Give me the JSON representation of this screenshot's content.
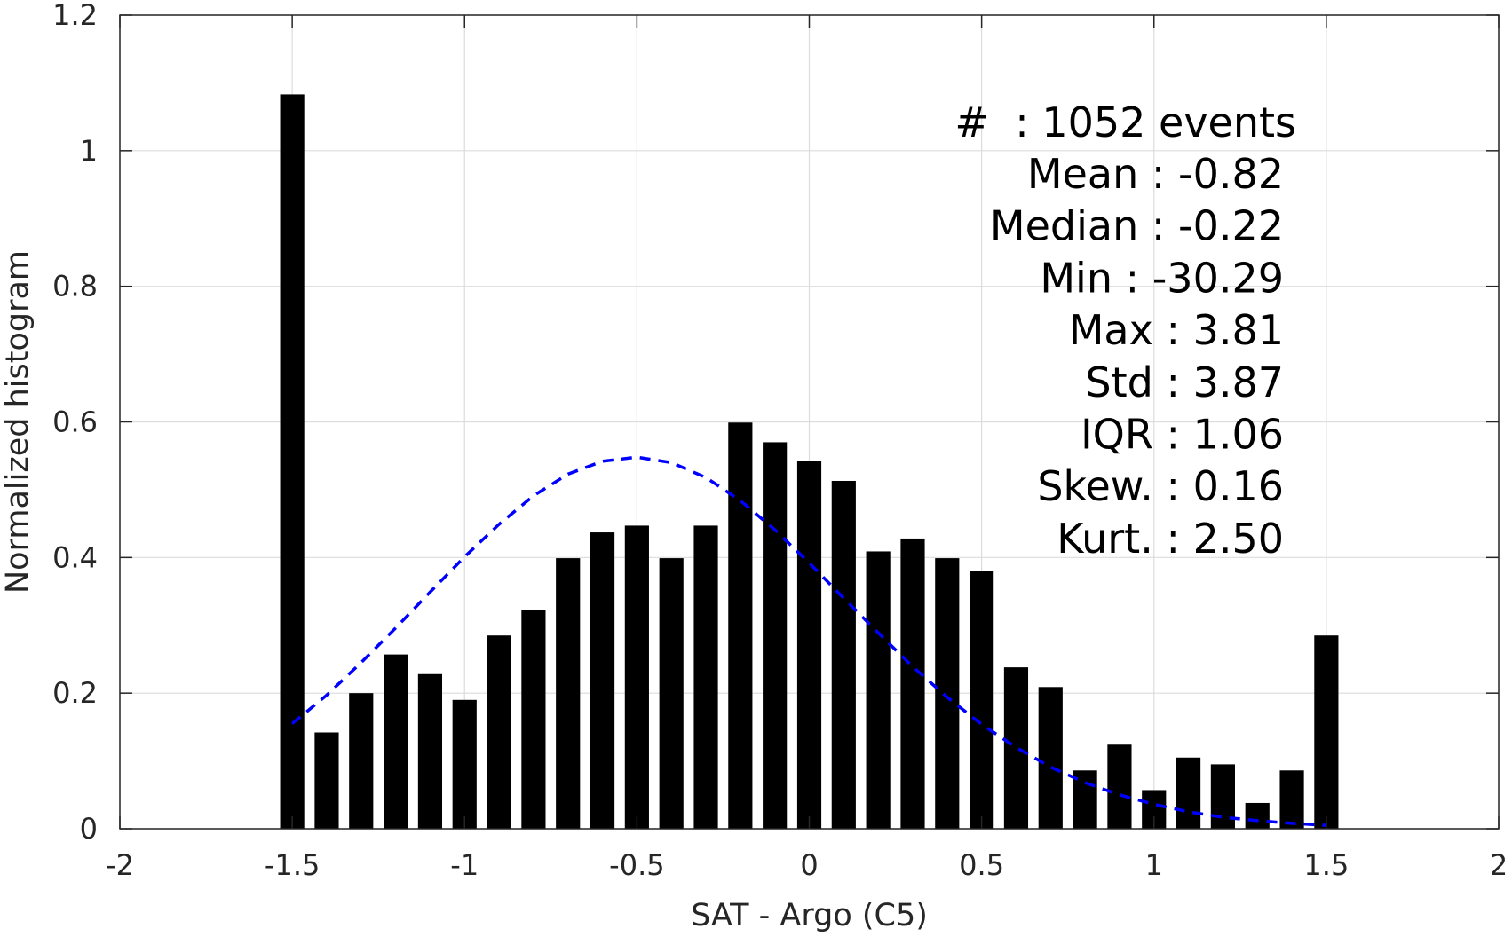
{
  "chart_data": {
    "type": "bar",
    "title": "",
    "xlabel": "SAT - Argo (C5)",
    "ylabel": "Normalized histogram",
    "xlim": [
      -2,
      2
    ],
    "ylim": [
      0,
      1.2
    ],
    "xticks": [
      -2,
      -1.5,
      -1,
      -0.5,
      0,
      0.5,
      1,
      1.5,
      2
    ],
    "xtick_labels": [
      "-2",
      "-1.5",
      "-1",
      "-0.5",
      "0",
      "0.5",
      "1",
      "1.5",
      "2"
    ],
    "yticks": [
      0,
      0.2,
      0.4,
      0.6,
      0.8,
      1,
      1.2
    ],
    "ytick_labels": [
      "0",
      "0.2",
      "0.4",
      "0.6",
      "0.8",
      "1",
      "1.2"
    ],
    "grid": true,
    "bar_width": 0.07,
    "x": [
      -1.5,
      -1.4,
      -1.3,
      -1.2,
      -1.1,
      -1.0,
      -0.9,
      -0.8,
      -0.7,
      -0.6,
      -0.5,
      -0.4,
      -0.3,
      -0.2,
      -0.1,
      0.0,
      0.1,
      0.2,
      0.3,
      0.4,
      0.5,
      0.6,
      0.7,
      0.8,
      0.9,
      1.0,
      1.1,
      1.2,
      1.3,
      1.4,
      1.5
    ],
    "values": [
      1.083,
      0.142,
      0.2,
      0.257,
      0.228,
      0.19,
      0.285,
      0.323,
      0.399,
      0.437,
      0.447,
      0.399,
      0.447,
      0.599,
      0.57,
      0.542,
      0.513,
      0.409,
      0.428,
      0.399,
      0.38,
      0.238,
      0.209,
      0.086,
      0.124,
      0.057,
      0.105,
      0.095,
      0.038,
      0.086,
      0.285
    ],
    "bar_color": "#000000",
    "fit_curve": {
      "style": "dashed",
      "color": "#0000ff",
      "x": [
        -1.5,
        -1.4,
        -1.3,
        -1.2,
        -1.1,
        -1.0,
        -0.9,
        -0.8,
        -0.7,
        -0.6,
        -0.5,
        -0.4,
        -0.3,
        -0.2,
        -0.1,
        0.0,
        0.1,
        0.2,
        0.3,
        0.4,
        0.5,
        0.6,
        0.7,
        0.8,
        0.9,
        1.0,
        1.1,
        1.2,
        1.3,
        1.4,
        1.5
      ],
      "y": [
        0.155,
        0.197,
        0.245,
        0.296,
        0.349,
        0.401,
        0.449,
        0.491,
        0.523,
        0.542,
        0.548,
        0.54,
        0.518,
        0.484,
        0.441,
        0.392,
        0.34,
        0.289,
        0.239,
        0.194,
        0.154,
        0.12,
        0.091,
        0.068,
        0.05,
        0.036,
        0.025,
        0.017,
        0.012,
        0.008,
        0.005
      ]
    },
    "annotations": {
      "count_line": "#  : 1052 events",
      "lines": [
        "Mean : -0.82",
        "Median : -0.22",
        "Min : -30.29",
        "Max : 3.81",
        "Std : 3.87",
        "IQR : 1.06",
        "Skew. : 0.16",
        "Kurt. : 2.50"
      ]
    }
  }
}
